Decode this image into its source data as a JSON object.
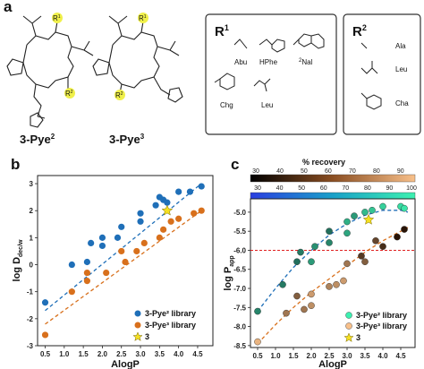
{
  "panel_a": {
    "label": "a",
    "compound_names": [
      "3-Pye",
      "2",
      "3-Pye",
      "3"
    ],
    "r1_box": {
      "title_main": "R",
      "title_sup": "1",
      "items": [
        {
          "label": "Abu",
          "icon": "ethyl-sidechain-icon"
        },
        {
          "label": "HPhe",
          "icon": "homophenyl-sidechain-icon"
        },
        {
          "label": "Nal",
          "sup": "2",
          "icon": "naphthyl-sidechain-icon"
        },
        {
          "label": "Chg",
          "icon": "cyclohexyl-sidechain-icon"
        },
        {
          "label": "Leu",
          "icon": "isobutyl-sidechain-icon"
        }
      ]
    },
    "r2_box": {
      "title_main": "R",
      "title_sup": "2",
      "items": [
        {
          "label": "Ala",
          "icon": "methyl-sidechain-icon"
        },
        {
          "label": "Leu",
          "icon": "isobutyl-sidechain-icon"
        },
        {
          "label": "Cha",
          "icon": "cyclohexylmethyl-sidechain-icon"
        }
      ]
    },
    "structure_labels": {
      "r1": "R",
      "r1_sup": "1",
      "r2": "R",
      "r2_sup": "2",
      "atom_n": "N",
      "atom_o": "O",
      "atom_h": "H"
    }
  },
  "panel_b": {
    "label": "b",
    "chart_data": {
      "type": "scatter",
      "xlabel": "AlogP",
      "ylabel_main": "log D",
      "ylabel_sub": "dec/w",
      "xlim": [
        0.3,
        4.9
      ],
      "ylim": [
        -3,
        3.3
      ],
      "xticks": [
        "0.5",
        "1.0",
        "1.5",
        "2.0",
        "2.5",
        "3.0",
        "3.5",
        "4.0",
        "4.5"
      ],
      "yticks": [
        "-3",
        "-2",
        "-1",
        "0",
        "1",
        "2",
        "3"
      ],
      "legend_position": "bottom-right",
      "series": [
        {
          "name": "3-Pye² library",
          "marker": "circle",
          "color": "#1f6fb8",
          "points": [
            [
              0.5,
              -1.4
            ],
            [
              1.2,
              0.0
            ],
            [
              1.6,
              0.1
            ],
            [
              1.7,
              0.8
            ],
            [
              2.0,
              0.7
            ],
            [
              2.0,
              1.0
            ],
            [
              2.4,
              1.0
            ],
            [
              2.5,
              1.4
            ],
            [
              3.0,
              1.6
            ],
            [
              3.0,
              1.9
            ],
            [
              3.4,
              2.2
            ],
            [
              3.5,
              2.5
            ],
            [
              3.6,
              2.4
            ],
            [
              3.7,
              2.3
            ],
            [
              4.0,
              2.7
            ],
            [
              4.3,
              2.7
            ],
            [
              4.6,
              2.9
            ]
          ]
        },
        {
          "name": "3-Pye³ library",
          "marker": "circle",
          "color": "#d8701c",
          "points": [
            [
              0.5,
              -2.6
            ],
            [
              1.2,
              -1.0
            ],
            [
              1.6,
              -0.6
            ],
            [
              1.6,
              -0.3
            ],
            [
              2.1,
              -0.3
            ],
            [
              2.6,
              0.1
            ],
            [
              2.5,
              0.5
            ],
            [
              2.9,
              0.5
            ],
            [
              3.1,
              0.8
            ],
            [
              3.5,
              1.0
            ],
            [
              3.6,
              1.3
            ],
            [
              3.8,
              1.6
            ],
            [
              4.0,
              1.7
            ],
            [
              4.4,
              1.9
            ],
            [
              4.6,
              2.0
            ]
          ]
        },
        {
          "name": "3",
          "marker": "star",
          "color": "#f5e020",
          "points": [
            [
              3.7,
              2.0
            ]
          ]
        }
      ],
      "fits": [
        {
          "series": "3-Pye² library",
          "color": "#1f6fb8",
          "line": [
            [
              0.5,
              -1.7
            ],
            [
              4.6,
              3.0
            ]
          ]
        },
        {
          "series": "3-Pye³ library",
          "color": "#d8701c",
          "line": [
            [
              0.5,
              -2.2
            ],
            [
              4.6,
              2.0
            ]
          ]
        }
      ]
    }
  },
  "panel_c": {
    "label": "c",
    "colorbar_title": "% recovery",
    "colorbar_top_ticks": [
      "30",
      "40",
      "50",
      "60",
      "70",
      "80",
      "90"
    ],
    "colorbar_mid_ticks": [
      "30",
      "40",
      "50",
      "60",
      "70",
      "80",
      "90",
      "100"
    ],
    "colors": {
      "teal_low": "#1d5a4e",
      "teal_high": "#3df0b0",
      "copper_low": "#2a1406",
      "copper_high": "#f8c08a"
    },
    "chart_data": {
      "type": "scatter",
      "xlabel": "AlogP",
      "ylabel_main": "log P",
      "ylabel_sub": "app",
      "xlim": [
        0.3,
        4.9
      ],
      "ylim": [
        -8.55,
        -4.65
      ],
      "xticks": [
        "0.5",
        "1.0",
        "1.5",
        "2.0",
        "2.5",
        "3.0",
        "3.5",
        "4.0",
        "4.5"
      ],
      "yticks": [
        "-8.5",
        "-8.0",
        "-7.5",
        "-7.0",
        "-6.5",
        "-6.0",
        "-5.5",
        "-5.0"
      ],
      "threshold_line": -6.0,
      "legend_position": "bottom-right",
      "series": [
        {
          "name": "3-Pye² library",
          "marker": "circle",
          "palette": "teal",
          "points": [
            [
              0.5,
              -7.6,
              50
            ],
            [
              1.2,
              -6.9,
              45
            ],
            [
              1.6,
              -6.3,
              40
            ],
            [
              1.7,
              -6.05,
              45
            ],
            [
              2.0,
              -6.3,
              60
            ],
            [
              2.1,
              -5.9,
              55
            ],
            [
              2.5,
              -5.5,
              40
            ],
            [
              2.5,
              -5.8,
              50
            ],
            [
              3.0,
              -5.55,
              65
            ],
            [
              3.0,
              -5.25,
              70
            ],
            [
              3.2,
              -5.1,
              60
            ],
            [
              3.5,
              -5.0,
              75
            ],
            [
              3.7,
              -4.95,
              80
            ],
            [
              4.0,
              -4.85,
              85
            ],
            [
              4.5,
              -4.85,
              90
            ],
            [
              4.6,
              -4.9,
              95
            ]
          ]
        },
        {
          "name": "3-Pye³ library",
          "marker": "circle",
          "palette": "copper",
          "points": [
            [
              0.5,
              -8.4,
              95
            ],
            [
              1.3,
              -7.65,
              70
            ],
            [
              1.6,
              -7.2,
              60
            ],
            [
              1.8,
              -7.55,
              70
            ],
            [
              2.0,
              -7.45,
              80
            ],
            [
              2.0,
              -7.15,
              85
            ],
            [
              2.5,
              -6.95,
              75
            ],
            [
              2.7,
              -6.9,
              80
            ],
            [
              2.9,
              -6.8,
              85
            ],
            [
              3.0,
              -6.35,
              70
            ],
            [
              3.4,
              -6.15,
              45
            ],
            [
              3.5,
              -6.3,
              60
            ],
            [
              3.8,
              -5.75,
              50
            ],
            [
              4.0,
              -5.9,
              40
            ],
            [
              4.4,
              -5.65,
              30
            ],
            [
              4.6,
              -5.45,
              30
            ]
          ]
        },
        {
          "name": "3",
          "marker": "star",
          "color": "#f5e020",
          "points": [
            [
              3.6,
              -5.2
            ]
          ]
        }
      ],
      "fits": [
        {
          "series": "3-Pye² library",
          "color": "#1f6fb8",
          "curve": [
            [
              0.5,
              -7.6
            ],
            [
              1.0,
              -7.0
            ],
            [
              1.5,
              -6.45
            ],
            [
              2.0,
              -6.0
            ],
            [
              2.5,
              -5.6
            ],
            [
              3.0,
              -5.3
            ],
            [
              3.5,
              -5.08
            ],
            [
              4.0,
              -4.95
            ],
            [
              4.5,
              -4.95
            ],
            [
              4.7,
              -5.0
            ]
          ]
        },
        {
          "series": "3-Pye³ library",
          "color": "#d8701c",
          "curve": [
            [
              0.5,
              -8.45
            ],
            [
              1.0,
              -7.95
            ],
            [
              1.5,
              -7.5
            ],
            [
              2.0,
              -7.1
            ],
            [
              2.5,
              -6.75
            ],
            [
              3.0,
              -6.4
            ],
            [
              3.5,
              -6.05
            ],
            [
              4.0,
              -5.75
            ],
            [
              4.5,
              -5.5
            ],
            [
              4.7,
              -5.4
            ]
          ]
        }
      ]
    }
  },
  "legend": {
    "items": [
      "3-Pye² library",
      "3-Pye³ library",
      "3"
    ]
  }
}
